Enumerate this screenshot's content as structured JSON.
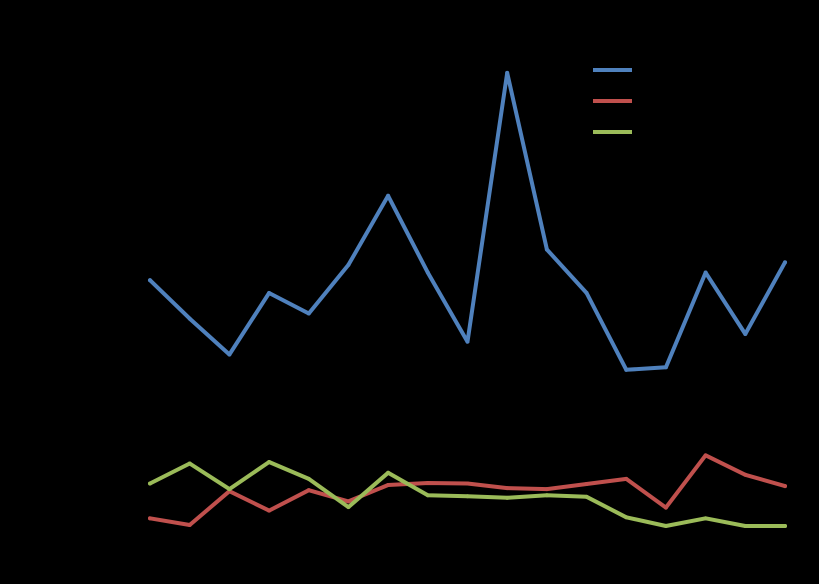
{
  "chart_data": {
    "type": "line",
    "title": "",
    "xlabel": "",
    "ylabel": "",
    "x": [
      1,
      2,
      3,
      4,
      5,
      6,
      7,
      8,
      9,
      10,
      11,
      12,
      13,
      14,
      15,
      16,
      17
    ],
    "ylim": [
      0,
      10
    ],
    "y_ticks": [
      0,
      1,
      2,
      3,
      4,
      5,
      6,
      7,
      8,
      9,
      10
    ],
    "grid": false,
    "legend": {
      "position": "top-right",
      "entries": 3
    },
    "series": [
      {
        "color": "#4f81bd",
        "values": [
          4.8,
          4.05,
          3.35,
          4.55,
          4.15,
          5.1,
          6.45,
          4.95,
          3.6,
          8.85,
          5.4,
          4.55,
          3.05,
          3.1,
          4.95,
          3.75,
          5.15
        ]
      },
      {
        "color": "#c0504d",
        "values": [
          0.15,
          0.02,
          0.68,
          0.3,
          0.7,
          0.48,
          0.8,
          0.84,
          0.83,
          0.74,
          0.72,
          0.82,
          0.92,
          0.36,
          1.38,
          1.0,
          0.78
        ]
      },
      {
        "color": "#9bbb59",
        "values": [
          0.83,
          1.22,
          0.72,
          1.25,
          0.92,
          0.37,
          1.04,
          0.6,
          0.58,
          0.55,
          0.6,
          0.57,
          0.17,
          0.0,
          0.15,
          0.0,
          0.0
        ]
      }
    ]
  },
  "axis_color": "#000000",
  "background": "#000000"
}
